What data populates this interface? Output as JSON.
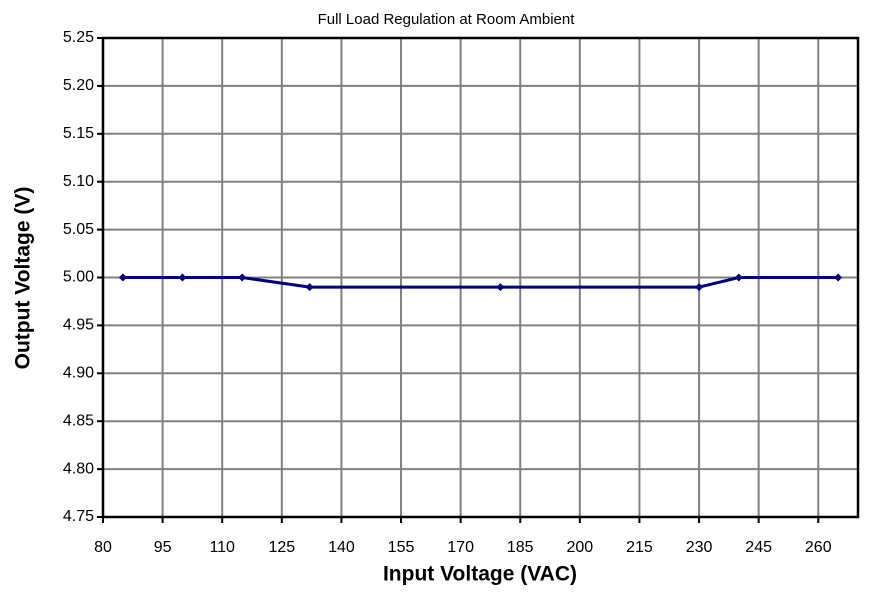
{
  "chart_data": {
    "type": "line",
    "title": "Full Load Regulation at Room Ambient",
    "x_label": "Input Voltage (VAC)",
    "y_label": "Output Voltage (V)",
    "x": [
      85,
      100,
      115,
      132,
      180,
      230,
      240,
      265
    ],
    "series": [
      {
        "name": "Output Voltage",
        "color": "#000080",
        "values": [
          5.0,
          5.0,
          5.0,
          4.99,
          4.99,
          4.99,
          5.0,
          5.0
        ]
      }
    ],
    "xlim": [
      80,
      270
    ],
    "xticks": [
      80,
      95,
      110,
      125,
      140,
      155,
      170,
      185,
      200,
      215,
      230,
      245,
      260
    ],
    "ylim": [
      4.75,
      5.25
    ],
    "yticks": [
      {
        "value": 4.75,
        "label": "4.75"
      },
      {
        "value": 4.8,
        "label": "4.80"
      },
      {
        "value": 4.85,
        "label": "4.85"
      },
      {
        "value": 4.9,
        "label": "4.90"
      },
      {
        "value": 4.95,
        "label": "4.95"
      },
      {
        "value": 5,
        "label": "5.00"
      },
      {
        "value": 5.05,
        "label": "5.05"
      },
      {
        "value": 5.1,
        "label": "5.10"
      },
      {
        "value": 5.15,
        "label": "5.15"
      },
      {
        "value": 5.2,
        "label": "5.20"
      },
      {
        "value": 5.25,
        "label": "5.25"
      }
    ],
    "grid": true
  }
}
